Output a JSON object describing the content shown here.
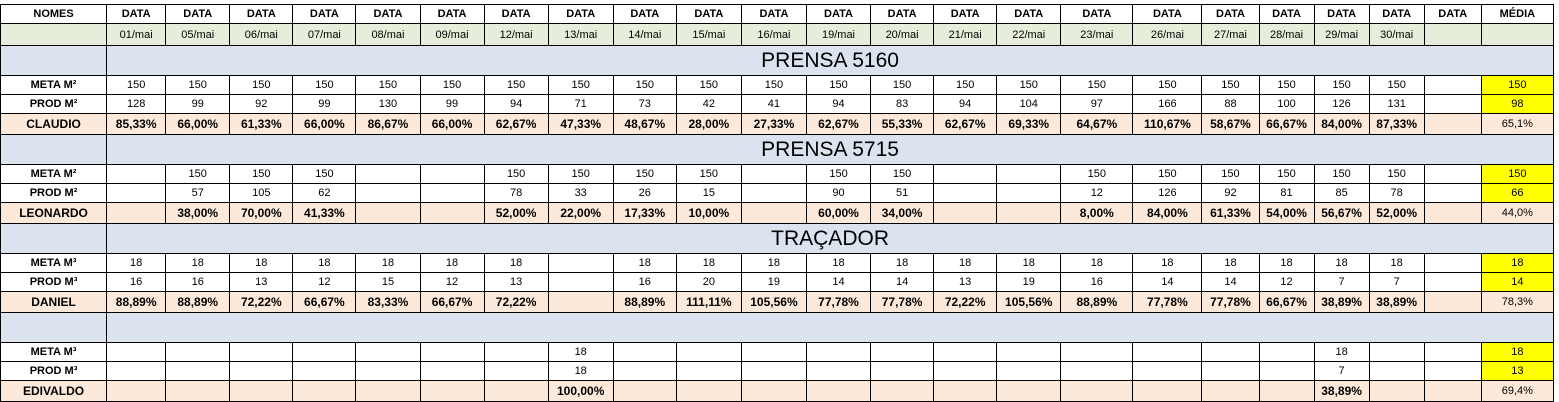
{
  "header": {
    "names_label": "NOMES",
    "data_label": "DATA",
    "avg_label": "MÉDIA",
    "dates": [
      "01/mai",
      "05/mai",
      "06/mai",
      "07/mai",
      "08/mai",
      "09/mai",
      "12/mai",
      "13/mai",
      "14/mai",
      "15/mai",
      "16/mai",
      "19/mai",
      "20/mai",
      "21/mai",
      "22/mai",
      "23/mai",
      "26/mai",
      "27/mai",
      "28/mai",
      "29/mai",
      "30/mai",
      ""
    ]
  },
  "sections": [
    {
      "title": "PRENSA 5160",
      "meta_label": "META M²",
      "prod_label": "PROD M²",
      "person": "CLAUDIO",
      "meta": [
        "150",
        "150",
        "150",
        "150",
        "150",
        "150",
        "150",
        "150",
        "150",
        "150",
        "150",
        "150",
        "150",
        "150",
        "150",
        "150",
        "150",
        "150",
        "150",
        "150",
        "150",
        ""
      ],
      "prod": [
        "128",
        "99",
        "92",
        "99",
        "130",
        "99",
        "94",
        "71",
        "73",
        "42",
        "41",
        "94",
        "83",
        "94",
        "104",
        "97",
        "166",
        "88",
        "100",
        "126",
        "131",
        ""
      ],
      "pct": [
        "85,33%",
        "66,00%",
        "61,33%",
        "66,00%",
        "86,67%",
        "66,00%",
        "62,67%",
        "47,33%",
        "48,67%",
        "28,00%",
        "27,33%",
        "62,67%",
        "55,33%",
        "62,67%",
        "69,33%",
        "64,67%",
        "110,67%",
        "58,67%",
        "66,67%",
        "84,00%",
        "87,33%",
        ""
      ],
      "avg_meta": "150",
      "avg_prod": "98",
      "avg_pct": "65,1%"
    },
    {
      "title": "PRENSA 5715",
      "meta_label": "META M²",
      "prod_label": "PROD M²",
      "person": "LEONARDO",
      "meta": [
        "",
        "150",
        "150",
        "150",
        "",
        "",
        "150",
        "150",
        "150",
        "150",
        "",
        "150",
        "150",
        "",
        "",
        "150",
        "150",
        "150",
        "150",
        "150",
        "150",
        ""
      ],
      "prod": [
        "",
        "57",
        "105",
        "62",
        "",
        "",
        "78",
        "33",
        "26",
        "15",
        "",
        "90",
        "51",
        "",
        "",
        "12",
        "126",
        "92",
        "81",
        "85",
        "78",
        ""
      ],
      "pct": [
        "",
        "38,00%",
        "70,00%",
        "41,33%",
        "",
        "",
        "52,00%",
        "22,00%",
        "17,33%",
        "10,00%",
        "",
        "60,00%",
        "34,00%",
        "",
        "",
        "8,00%",
        "84,00%",
        "61,33%",
        "54,00%",
        "56,67%",
        "52,00%",
        ""
      ],
      "avg_meta": "150",
      "avg_prod": "66",
      "avg_pct": "44,0%"
    },
    {
      "title": "TRAÇADOR",
      "meta_label": "META M³",
      "prod_label": "PROD M³",
      "person": "DANIEL",
      "meta": [
        "18",
        "18",
        "18",
        "18",
        "18",
        "18",
        "18",
        "",
        "18",
        "18",
        "18",
        "18",
        "18",
        "18",
        "18",
        "18",
        "18",
        "18",
        "18",
        "18",
        "18",
        ""
      ],
      "prod": [
        "16",
        "16",
        "13",
        "12",
        "15",
        "12",
        "13",
        "",
        "16",
        "20",
        "19",
        "14",
        "14",
        "13",
        "19",
        "16",
        "14",
        "14",
        "12",
        "7",
        "7",
        ""
      ],
      "pct": [
        "88,89%",
        "88,89%",
        "72,22%",
        "66,67%",
        "83,33%",
        "66,67%",
        "72,22%",
        "",
        "88,89%",
        "111,11%",
        "105,56%",
        "77,78%",
        "77,78%",
        "72,22%",
        "105,56%",
        "88,89%",
        "77,78%",
        "77,78%",
        "66,67%",
        "38,89%",
        "38,89%",
        ""
      ],
      "avg_meta": "18",
      "avg_prod": "14",
      "avg_pct": "78,3%"
    },
    {
      "title": "",
      "meta_label": "META M³",
      "prod_label": "PROD M³",
      "person": "EDIVALDO",
      "meta": [
        "",
        "",
        "",
        "",
        "",
        "",
        "",
        "18",
        "",
        "",
        "",
        "",
        "",
        "",
        "",
        "",
        "",
        "",
        "",
        "18",
        "",
        ""
      ],
      "prod": [
        "",
        "",
        "",
        "",
        "",
        "",
        "",
        "18",
        "",
        "",
        "",
        "",
        "",
        "",
        "",
        "",
        "",
        "",
        "",
        "7",
        "",
        ""
      ],
      "pct": [
        "",
        "",
        "",
        "",
        "",
        "",
        "",
        "100,00%",
        "",
        "",
        "",
        "",
        "",
        "",
        "",
        "",
        "",
        "",
        "",
        "38,89%",
        "",
        ""
      ],
      "avg_meta": "18",
      "avg_prod": "13",
      "avg_pct": "69,4%"
    }
  ]
}
